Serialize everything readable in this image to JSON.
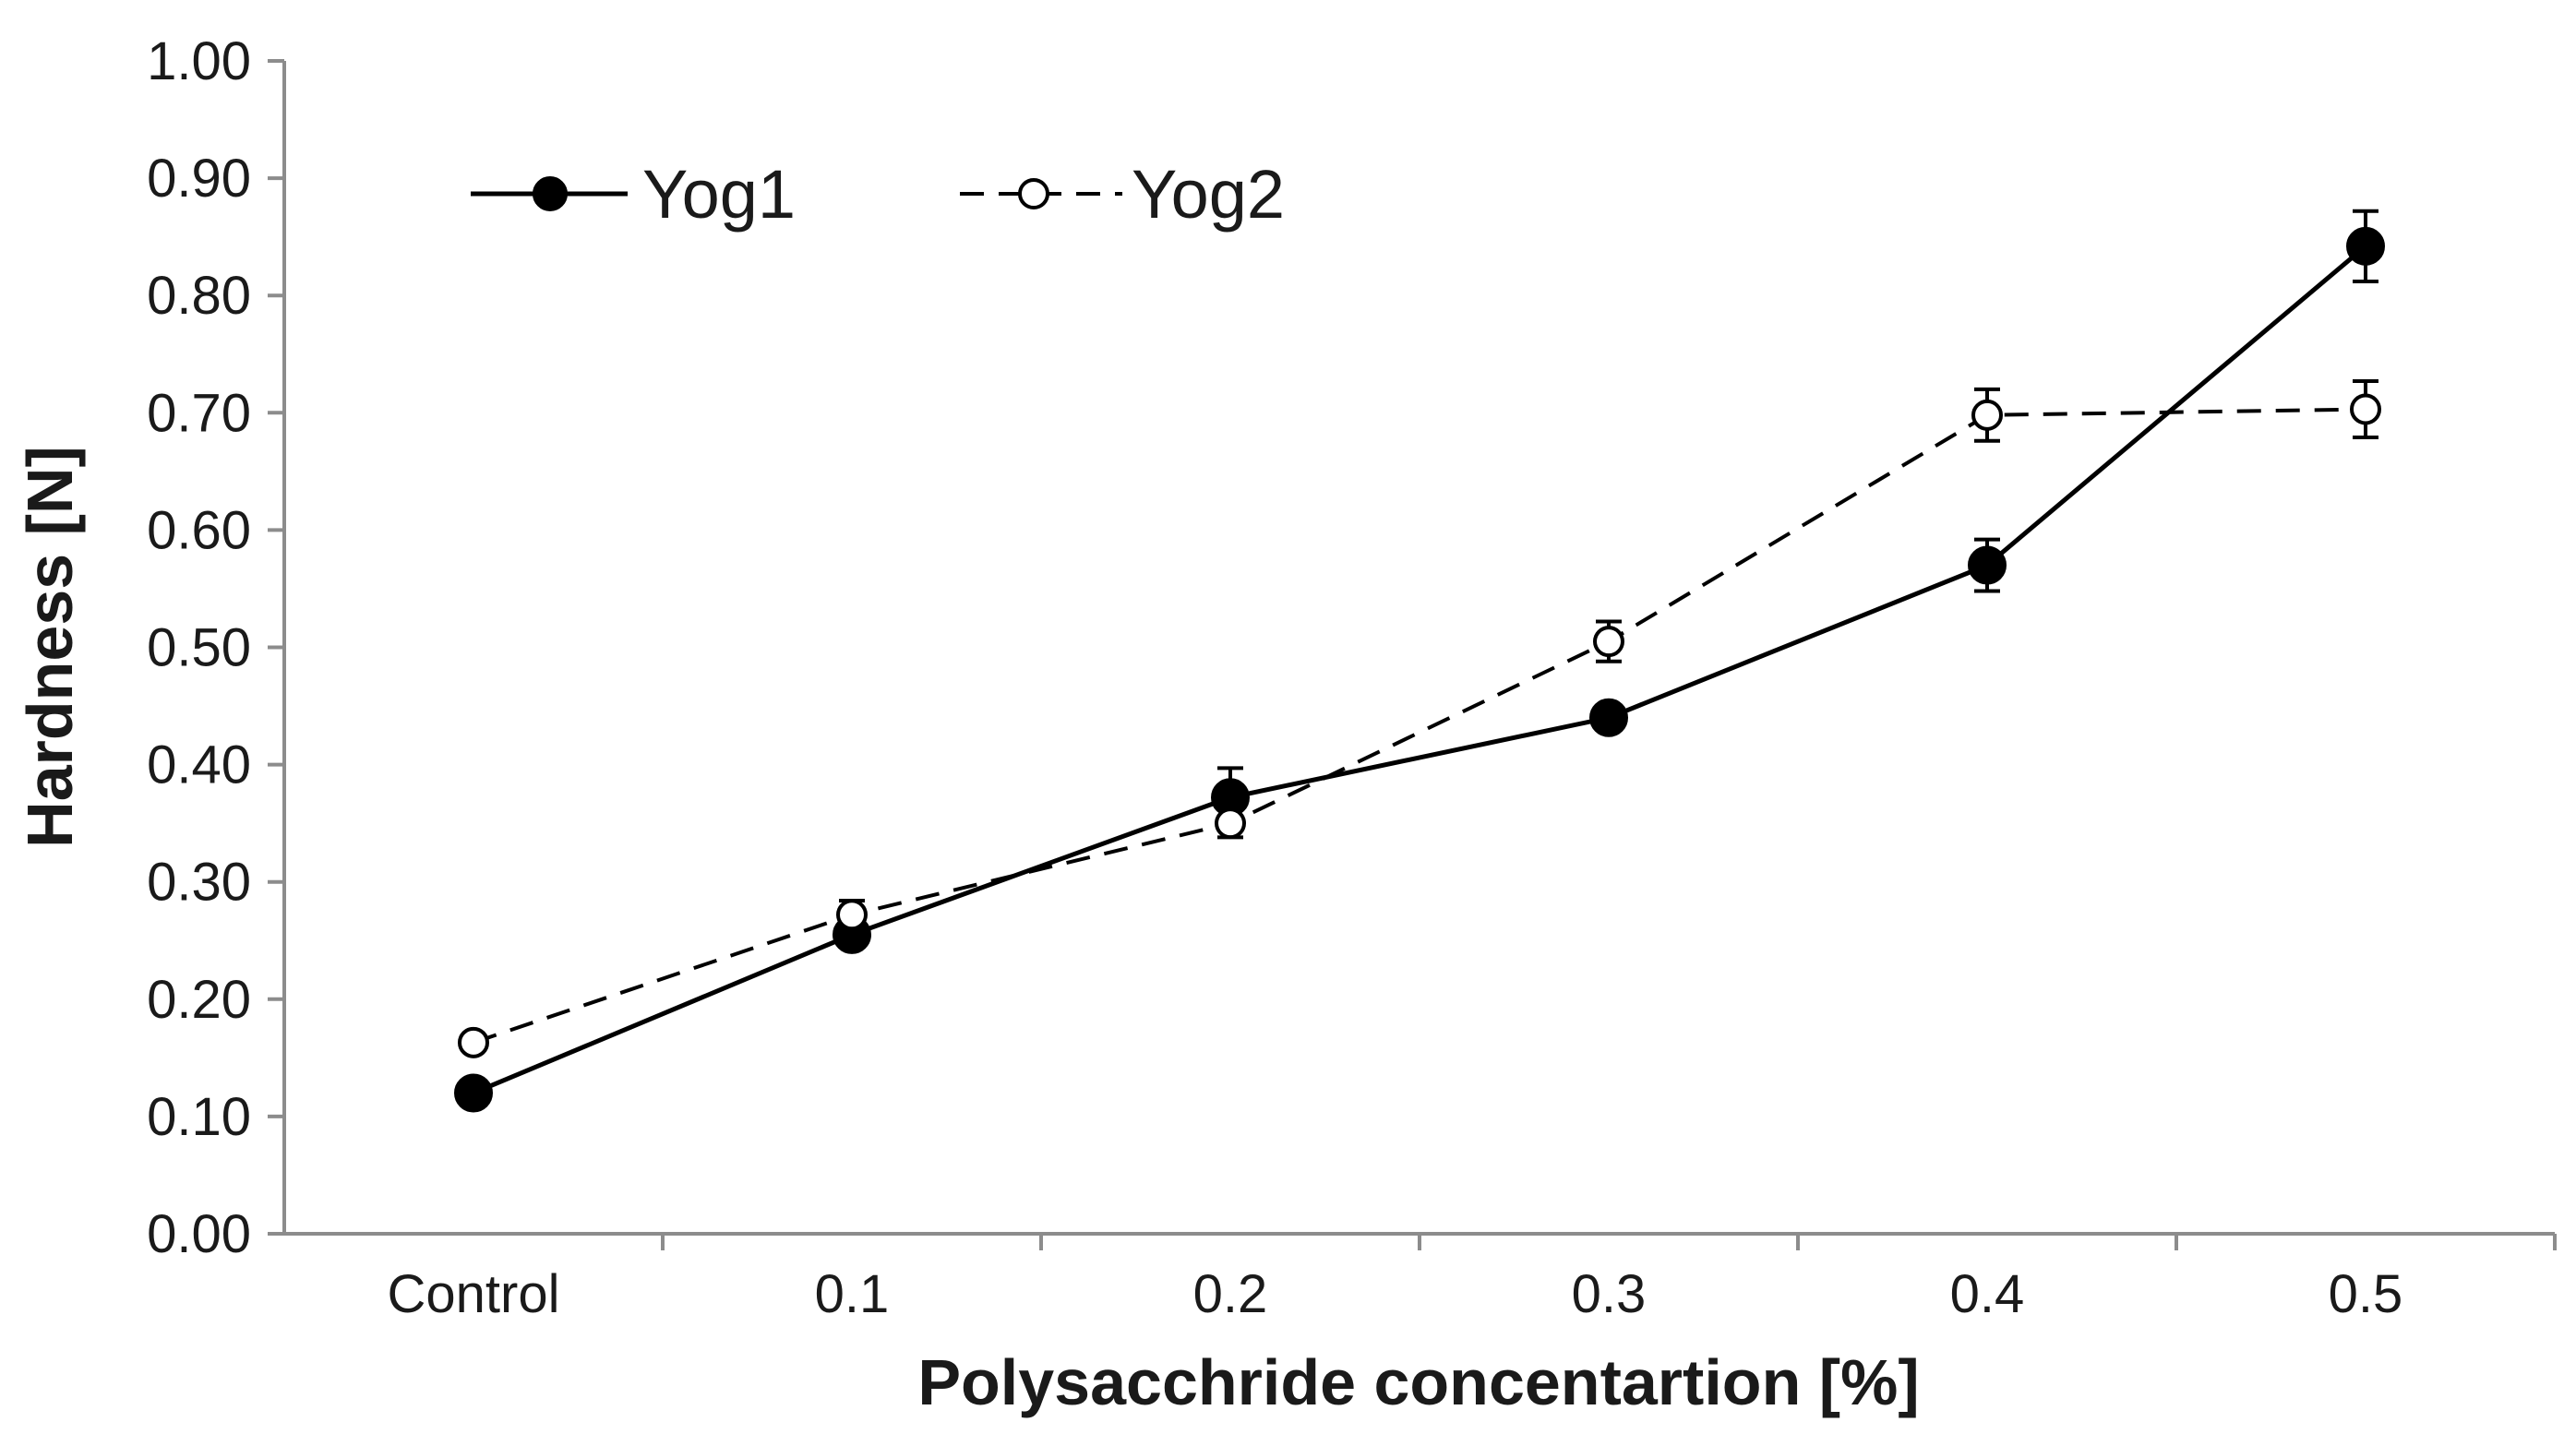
{
  "chart_data": {
    "type": "line",
    "title": "",
    "xlabel": "Polysacchride concentartion [%]",
    "ylabel": "Hardness [N]",
    "categories": [
      "Control",
      "0.1",
      "0.2",
      "0.3",
      "0.4",
      "0.5"
    ],
    "ylim": [
      0,
      1.0
    ],
    "yticks": [
      "0.00",
      "0.10",
      "0.20",
      "0.30",
      "0.40",
      "0.50",
      "0.60",
      "0.70",
      "0.80",
      "0.90",
      "1.00"
    ],
    "grid": false,
    "legend_position": "top-left",
    "series": [
      {
        "name": "Yog1",
        "style": "solid",
        "marker": "filled-circle",
        "color": "#000000",
        "values": [
          0.12,
          0.255,
          0.372,
          0.44,
          0.57,
          0.842
        ],
        "errors": [
          0.0,
          0.01,
          0.025,
          0.0,
          0.022,
          0.03
        ]
      },
      {
        "name": "Yog2",
        "style": "dashed",
        "marker": "open-circle",
        "color": "#000000",
        "values": [
          0.163,
          0.272,
          0.35,
          0.505,
          0.698,
          0.703
        ],
        "errors": [
          0.0,
          0.012,
          0.012,
          0.017,
          0.022,
          0.024
        ]
      }
    ]
  }
}
